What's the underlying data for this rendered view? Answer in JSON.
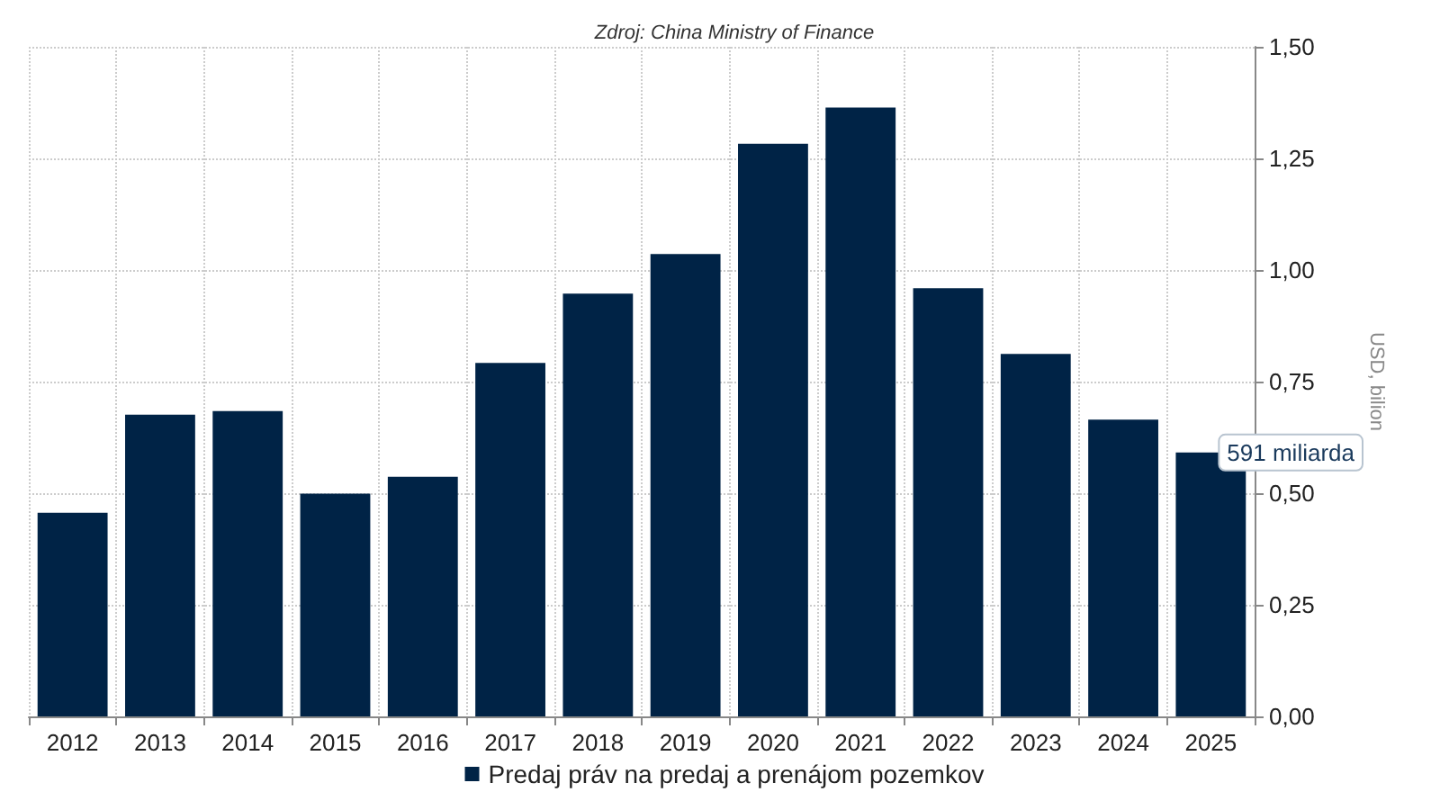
{
  "chart_data": {
    "type": "bar",
    "categories": [
      "2012",
      "2013",
      "2014",
      "2015",
      "2016",
      "2017",
      "2018",
      "2019",
      "2020",
      "2021",
      "2022",
      "2023",
      "2024",
      "2025"
    ],
    "series": [
      {
        "name": "Predaj práv na predaj a prenájom pozemkov",
        "color": "#002346",
        "values": [
          0.456,
          0.676,
          0.684,
          0.499,
          0.537,
          0.792,
          0.947,
          1.036,
          1.283,
          1.364,
          0.959,
          0.812,
          0.665,
          0.591
        ]
      }
    ],
    "ylabel": "USD, bilion",
    "ylim": [
      0,
      1.5
    ],
    "yticks": [
      {
        "value": 0,
        "label": "0,00"
      },
      {
        "value": 0.25,
        "label": "0,25"
      },
      {
        "value": 0.5,
        "label": "0,50"
      },
      {
        "value": 0.75,
        "label": "0,75"
      },
      {
        "value": 1,
        "label": "1,00"
      },
      {
        "value": 1.25,
        "label": "1,25"
      },
      {
        "value": 1.5,
        "label": "1,50"
      }
    ],
    "annotations": [
      "Zdroj: China Ministry of Finance",
      {
        "text": "591 miliarda",
        "x": "2025",
        "y": 0.591
      }
    ],
    "grid": true,
    "legend": "bottom"
  }
}
